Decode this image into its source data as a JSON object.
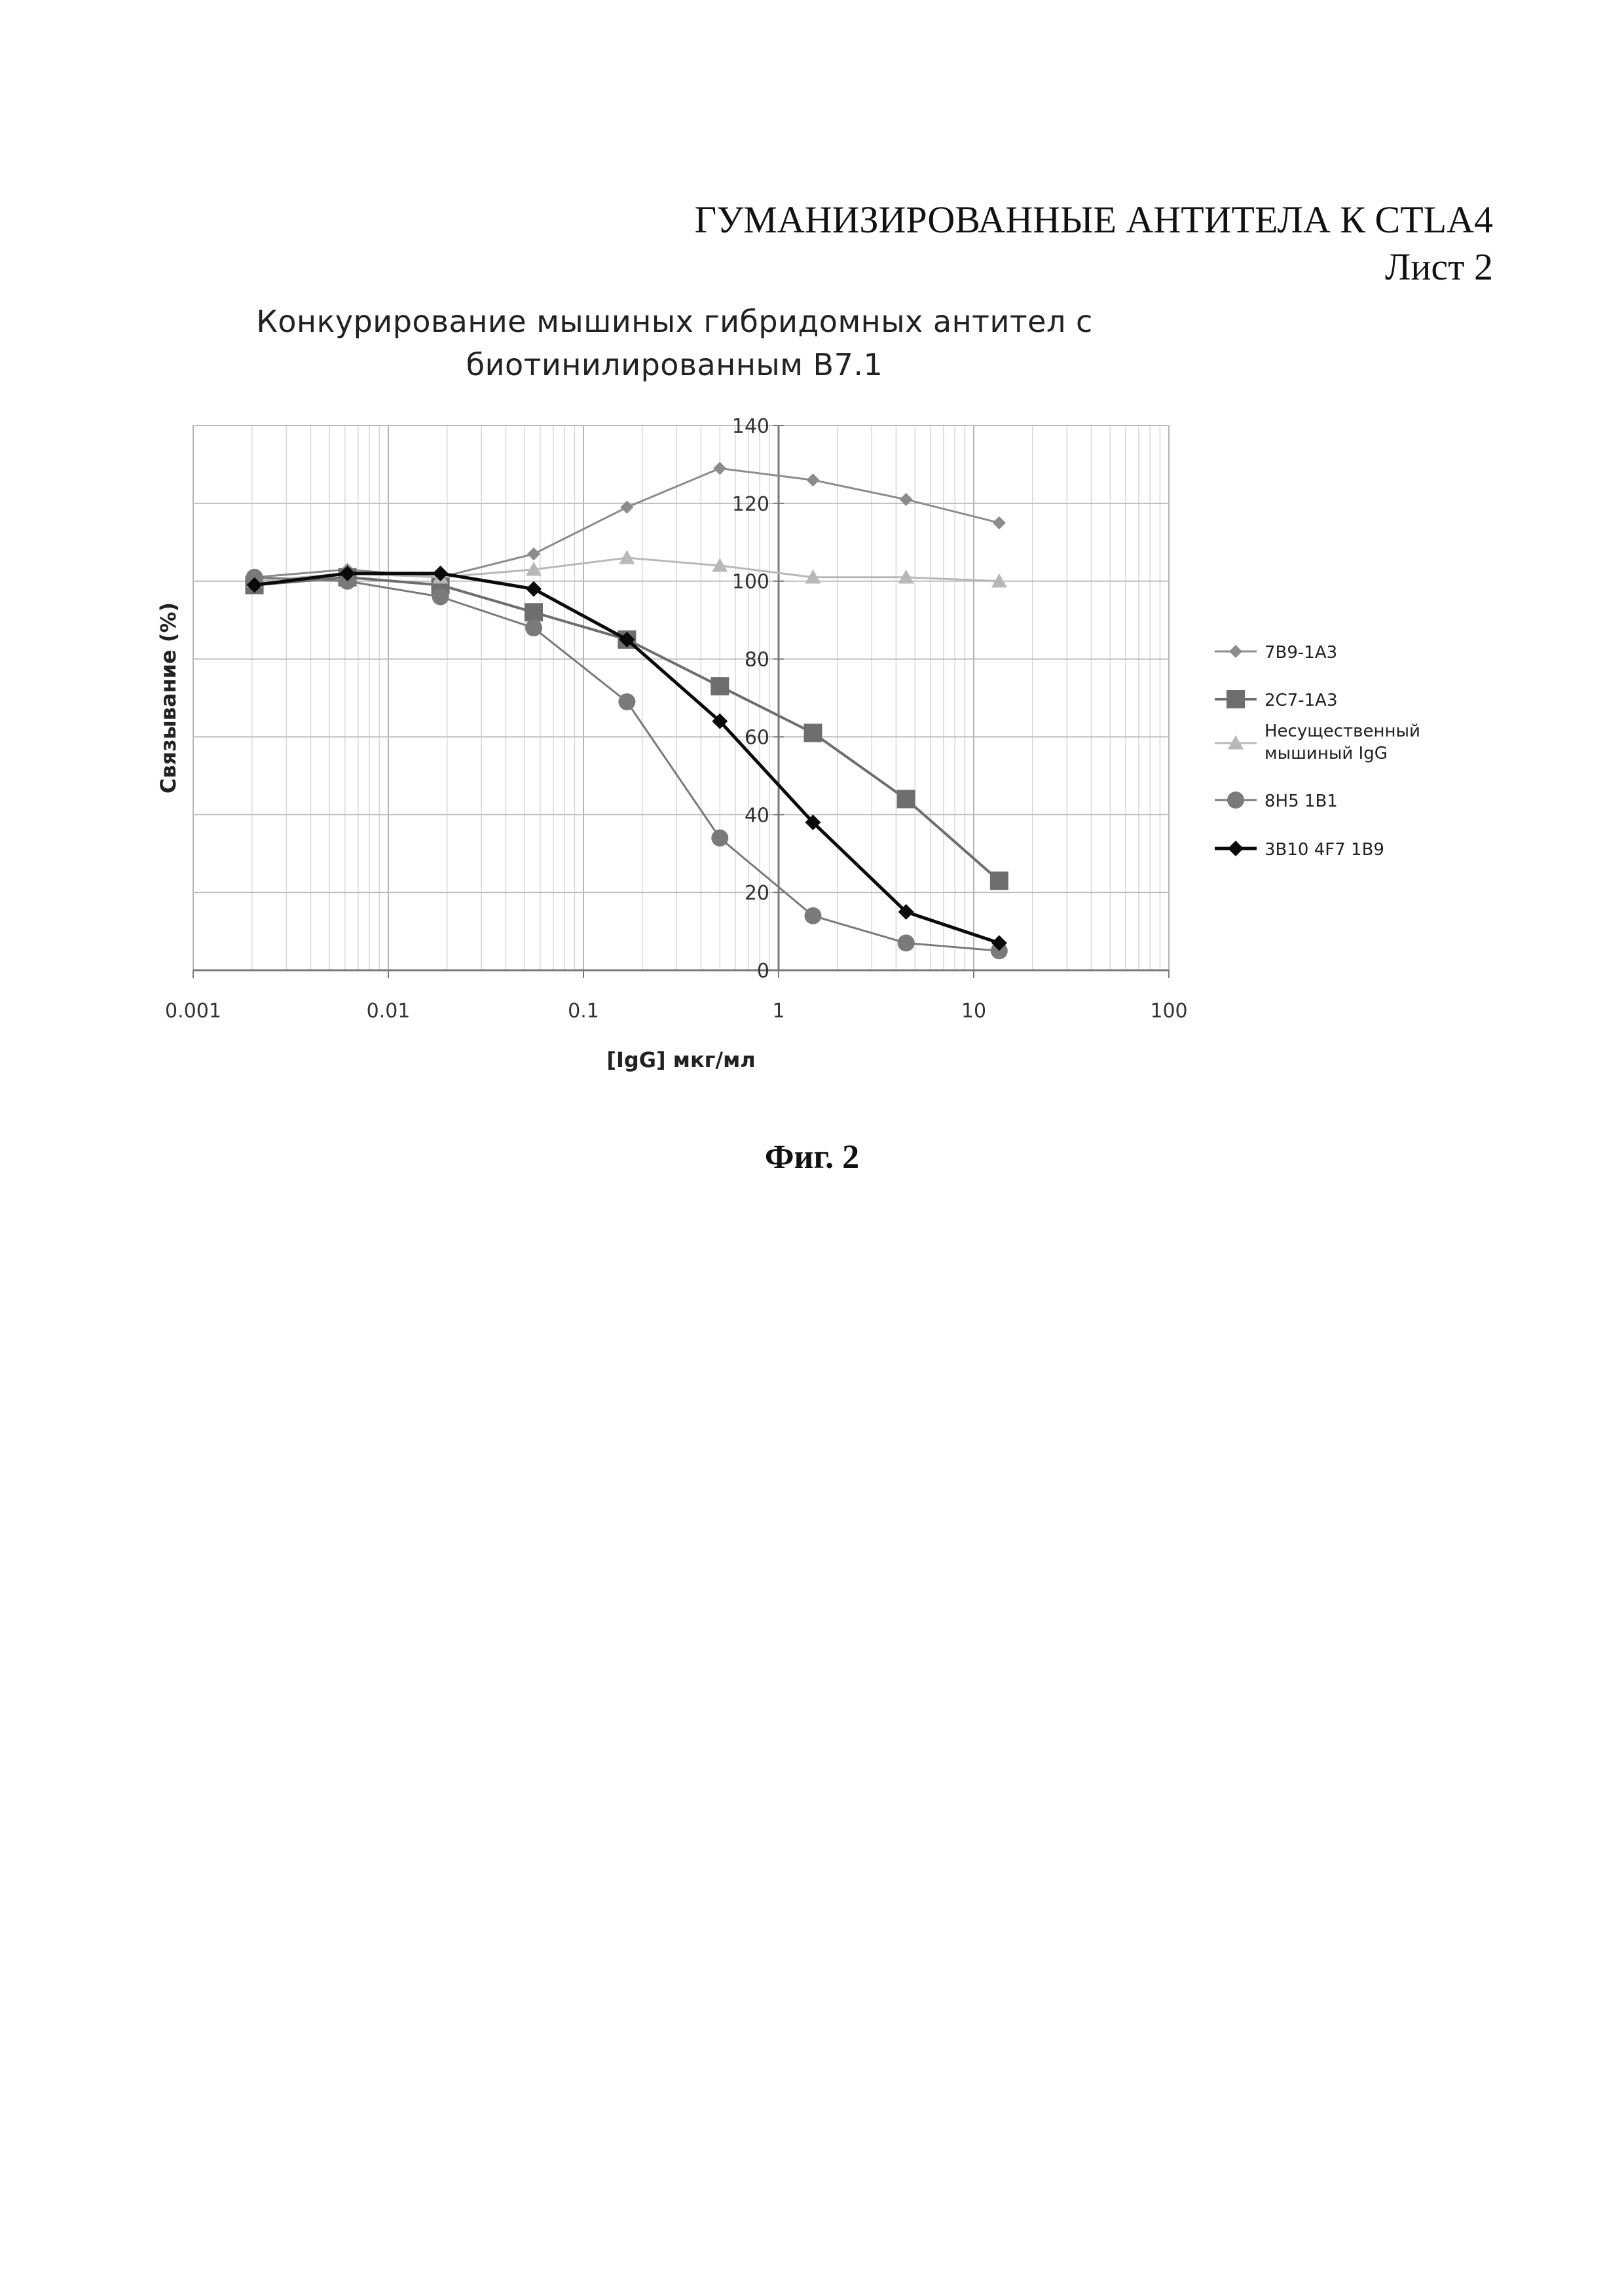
{
  "header": {
    "title": "ГУМАНИЗИРОВАННЫЕ АНТИТЕЛА К CTLA4",
    "sheet": "Лист 2"
  },
  "figure_caption": "Фиг. 2",
  "chart_data": {
    "type": "line",
    "title_lines": [
      "Конкурирование мышиных гибридомных антител с",
      "биотинилированным B7.1"
    ],
    "xlabel": "[IgG] мкг/мл",
    "ylabel": "Связывание (%)",
    "x_scale": "log",
    "xlim": [
      0.001,
      100
    ],
    "ylim": [
      0,
      140
    ],
    "x_ticks": [
      {
        "value": 0.001,
        "label": "0.001"
      },
      {
        "value": 0.01,
        "label": "0.01"
      },
      {
        "value": 0.1,
        "label": "0.1"
      },
      {
        "value": 1,
        "label": "1"
      },
      {
        "value": 10,
        "label": "10"
      },
      {
        "value": 100,
        "label": "100"
      }
    ],
    "y_ticks": [
      {
        "value": 0,
        "label": "0"
      },
      {
        "value": 20,
        "label": "20"
      },
      {
        "value": 40,
        "label": "40"
      },
      {
        "value": 60,
        "label": "60"
      },
      {
        "value": 80,
        "label": "80"
      },
      {
        "value": 100,
        "label": "100"
      },
      {
        "value": 120,
        "label": "120"
      },
      {
        "value": 140,
        "label": "140"
      }
    ],
    "grid": true,
    "legend_position": "right",
    "series": [
      {
        "name": "7B9-1A3",
        "marker": "diamond",
        "color": "#8c8c8c",
        "line_width": 3,
        "marker_size": 10,
        "x": [
          0.00206,
          0.00617,
          0.0185,
          0.0556,
          0.167,
          0.5,
          1.5,
          4.5,
          13.5
        ],
        "y": [
          101,
          103,
          101,
          107,
          119,
          129,
          126,
          121,
          115
        ]
      },
      {
        "name": "2C7-1A3",
        "marker": "square",
        "color": "#6e6e6e",
        "line_width": 4,
        "marker_size": 14,
        "x": [
          0.00206,
          0.00617,
          0.0185,
          0.0556,
          0.167,
          0.5,
          1.5,
          4.5,
          13.5
        ],
        "y": [
          99,
          101,
          99,
          92,
          85,
          73,
          61,
          44,
          23
        ]
      },
      {
        "name": "Несущественный мышиный IgG",
        "marker": "triangle",
        "color": "#b8b8b8",
        "line_width": 3,
        "marker_size": 12,
        "x": [
          0.00206,
          0.00617,
          0.0185,
          0.0556,
          0.167,
          0.5,
          1.5,
          4.5,
          13.5
        ],
        "y": [
          100,
          102,
          101,
          103,
          106,
          104,
          101,
          101,
          100
        ]
      },
      {
        "name": "8H5 1B1",
        "marker": "circle",
        "color": "#7a7a7a",
        "line_width": 3,
        "marker_size": 13,
        "x": [
          0.00206,
          0.00617,
          0.0185,
          0.0556,
          0.167,
          0.5,
          1.5,
          4.5,
          13.5
        ],
        "y": [
          101,
          100,
          96,
          88,
          69,
          34,
          14,
          7,
          5
        ]
      },
      {
        "name": "3B10 4F7 1B9",
        "marker": "diamond",
        "color": "#0a0a0a",
        "line_width": 5,
        "marker_size": 12,
        "x": [
          0.00206,
          0.00617,
          0.0185,
          0.0556,
          0.167,
          0.5,
          1.5,
          4.5,
          13.5
        ],
        "y": [
          99,
          102,
          102,
          98,
          85,
          64,
          38,
          15,
          7
        ]
      }
    ]
  }
}
